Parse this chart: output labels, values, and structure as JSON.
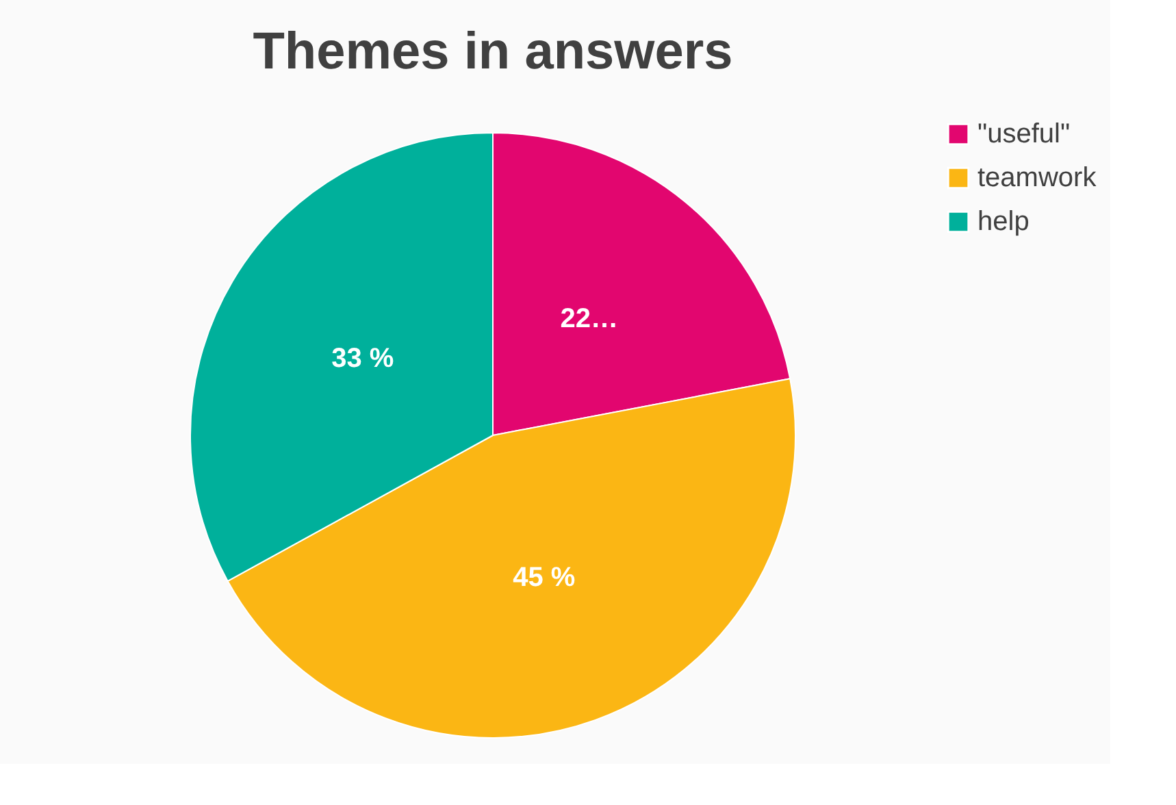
{
  "chart_data": {
    "type": "pie",
    "title": "Themes in answers",
    "categories": [
      "\"useful\"",
      "teamwork",
      "help"
    ],
    "values": [
      22,
      45,
      33
    ],
    "colors": [
      "#e2066f",
      "#fbb614",
      "#00b09b"
    ],
    "value_labels": [
      "22…",
      "45 %",
      "33 %"
    ],
    "legend": "right"
  }
}
